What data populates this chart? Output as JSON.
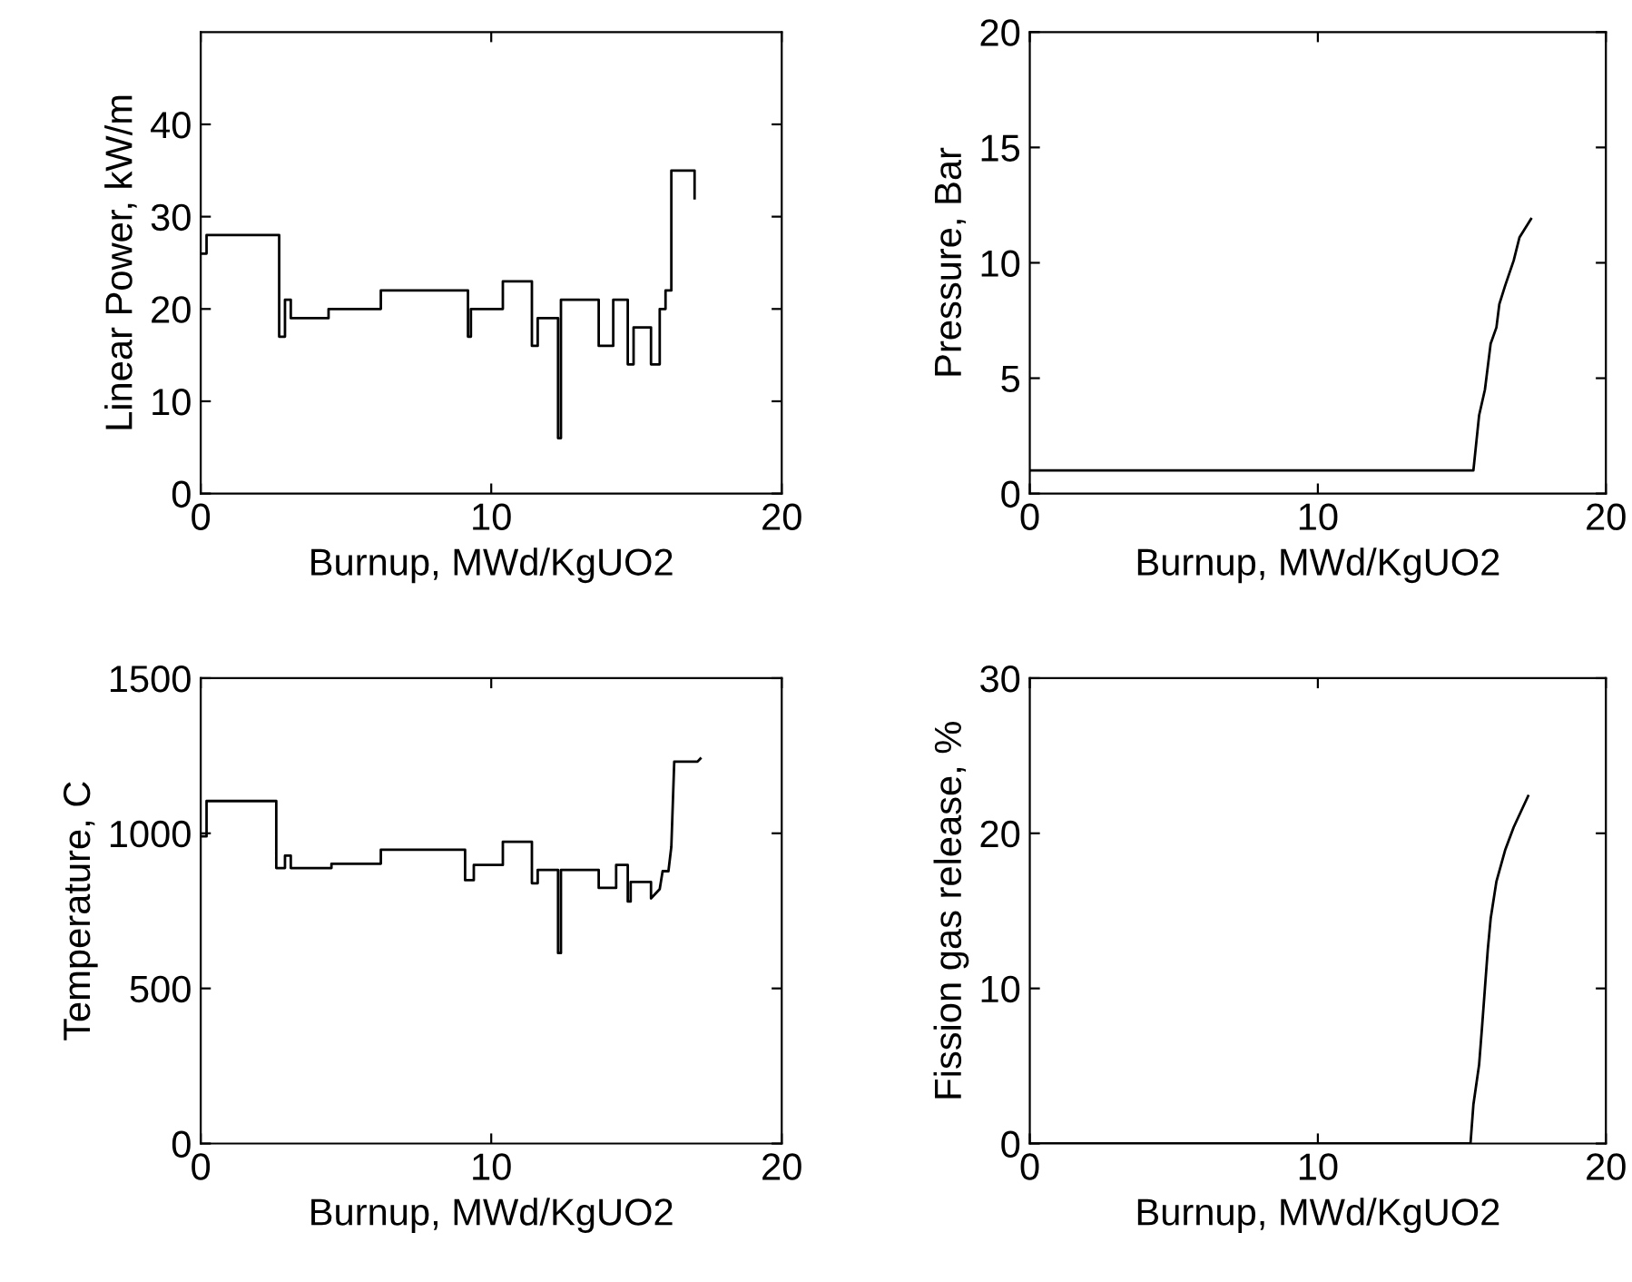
{
  "chart_data": [
    {
      "type": "line",
      "xlabel": "Burnup, MWd/KgUO2",
      "ylabel": "Linear Power, kW/m",
      "xlim": [
        0,
        20
      ],
      "xticks": [
        0,
        10,
        20
      ],
      "ylim": [
        0,
        50
      ],
      "yticks": [
        0,
        10,
        20,
        30,
        40
      ],
      "grid": false,
      "line_style": "solid",
      "marker": "none",
      "series": [
        {
          "color": "#000000",
          "x": [
            0,
            0.2,
            0.2,
            2.7,
            2.7,
            2.9,
            2.9,
            3.1,
            3.1,
            4.4,
            4.4,
            6.2,
            6.2,
            9.2,
            9.2,
            9.3,
            9.3,
            10.4,
            10.4,
            11.4,
            11.4,
            11.6,
            11.6,
            12.3,
            12.3,
            12.4,
            12.4,
            13.7,
            13.7,
            14.2,
            14.2,
            14.7,
            14.7,
            14.9,
            14.9,
            15.5,
            15.5,
            15.8,
            15.8,
            16.0,
            16.0,
            16.2,
            16.2,
            17.0,
            17.0
          ],
          "values": [
            26,
            26,
            28,
            28,
            17,
            17,
            21,
            21,
            19,
            19,
            20,
            20,
            22,
            22,
            17,
            17,
            20,
            20,
            23,
            23,
            16,
            16,
            19,
            19,
            6,
            6,
            21,
            21,
            16,
            16,
            21,
            21,
            14,
            14,
            18,
            18,
            14,
            14,
            20,
            20,
            22,
            22,
            35,
            35,
            32
          ]
        }
      ]
    },
    {
      "type": "line",
      "xlabel": "Burnup, MWd/KgUO2",
      "ylabel": "Pressure, Bar",
      "xlim": [
        0,
        20
      ],
      "xticks": [
        0,
        10,
        20
      ],
      "ylim": [
        0,
        20
      ],
      "yticks": [
        0,
        5,
        10,
        15,
        20
      ],
      "grid": false,
      "line_style": "solid",
      "marker": "none",
      "series": [
        {
          "color": "#000000",
          "x": [
            0,
            15.4,
            15.5,
            15.6,
            15.8,
            15.9,
            16.0,
            16.2,
            16.3,
            16.5,
            16.8,
            17.0,
            17.4
          ],
          "values": [
            1,
            1,
            2.2,
            3.4,
            4.5,
            5.5,
            6.5,
            7.2,
            8.2,
            9,
            10.1,
            11.1,
            11.9
          ]
        }
      ]
    },
    {
      "type": "line",
      "xlabel": "Burnup, MWd/KgUO2",
      "ylabel": "Temperature, C",
      "xlim": [
        0,
        20
      ],
      "xticks": [
        0,
        10,
        20
      ],
      "ylim": [
        0,
        1500
      ],
      "yticks": [
        0,
        500,
        1000,
        1500
      ],
      "grid": false,
      "line_style": "solid",
      "marker": "none",
      "series": [
        {
          "color": "#000000",
          "x": [
            0,
            0.2,
            0.2,
            2.6,
            2.6,
            2.9,
            2.9,
            3.1,
            3.1,
            4.5,
            4.5,
            6.2,
            6.2,
            9.1,
            9.1,
            9.4,
            9.4,
            10.4,
            10.4,
            11.4,
            11.4,
            11.6,
            11.6,
            12.3,
            12.3,
            12.4,
            12.4,
            13.7,
            13.7,
            14.3,
            14.3,
            14.7,
            14.7,
            14.8,
            14.8,
            15.5,
            15.5,
            15.8,
            15.9,
            16.1,
            16.2,
            16.3,
            17.1,
            17.2
          ],
          "values": [
            990,
            990,
            1104,
            1104,
            888,
            888,
            928,
            928,
            888,
            888,
            902,
            902,
            947,
            947,
            849,
            849,
            898,
            898,
            973,
            973,
            839,
            839,
            882,
            882,
            614,
            614,
            882,
            882,
            824,
            824,
            898,
            898,
            780,
            780,
            843,
            843,
            790,
            820,
            878,
            878,
            957,
            1231,
            1231,
            1241
          ]
        }
      ]
    },
    {
      "type": "line",
      "xlabel": "Burnup, MWd/KgUO2",
      "ylabel": "Fission gas release, %",
      "xlim": [
        0,
        20
      ],
      "xticks": [
        0,
        10,
        20
      ],
      "ylim": [
        0,
        30
      ],
      "yticks": [
        0,
        10,
        20,
        30
      ],
      "grid": false,
      "line_style": "solid",
      "marker": "none",
      "series": [
        {
          "color": "#000000",
          "x": [
            0,
            15.3,
            15.4,
            15.6,
            15.7,
            15.8,
            15.9,
            16.0,
            16.2,
            16.5,
            16.8,
            17.3
          ],
          "values": [
            0,
            0,
            2.5,
            5.1,
            7.5,
            10,
            12.5,
            14.5,
            16.9,
            18.9,
            20.4,
            22.4
          ]
        }
      ]
    }
  ]
}
